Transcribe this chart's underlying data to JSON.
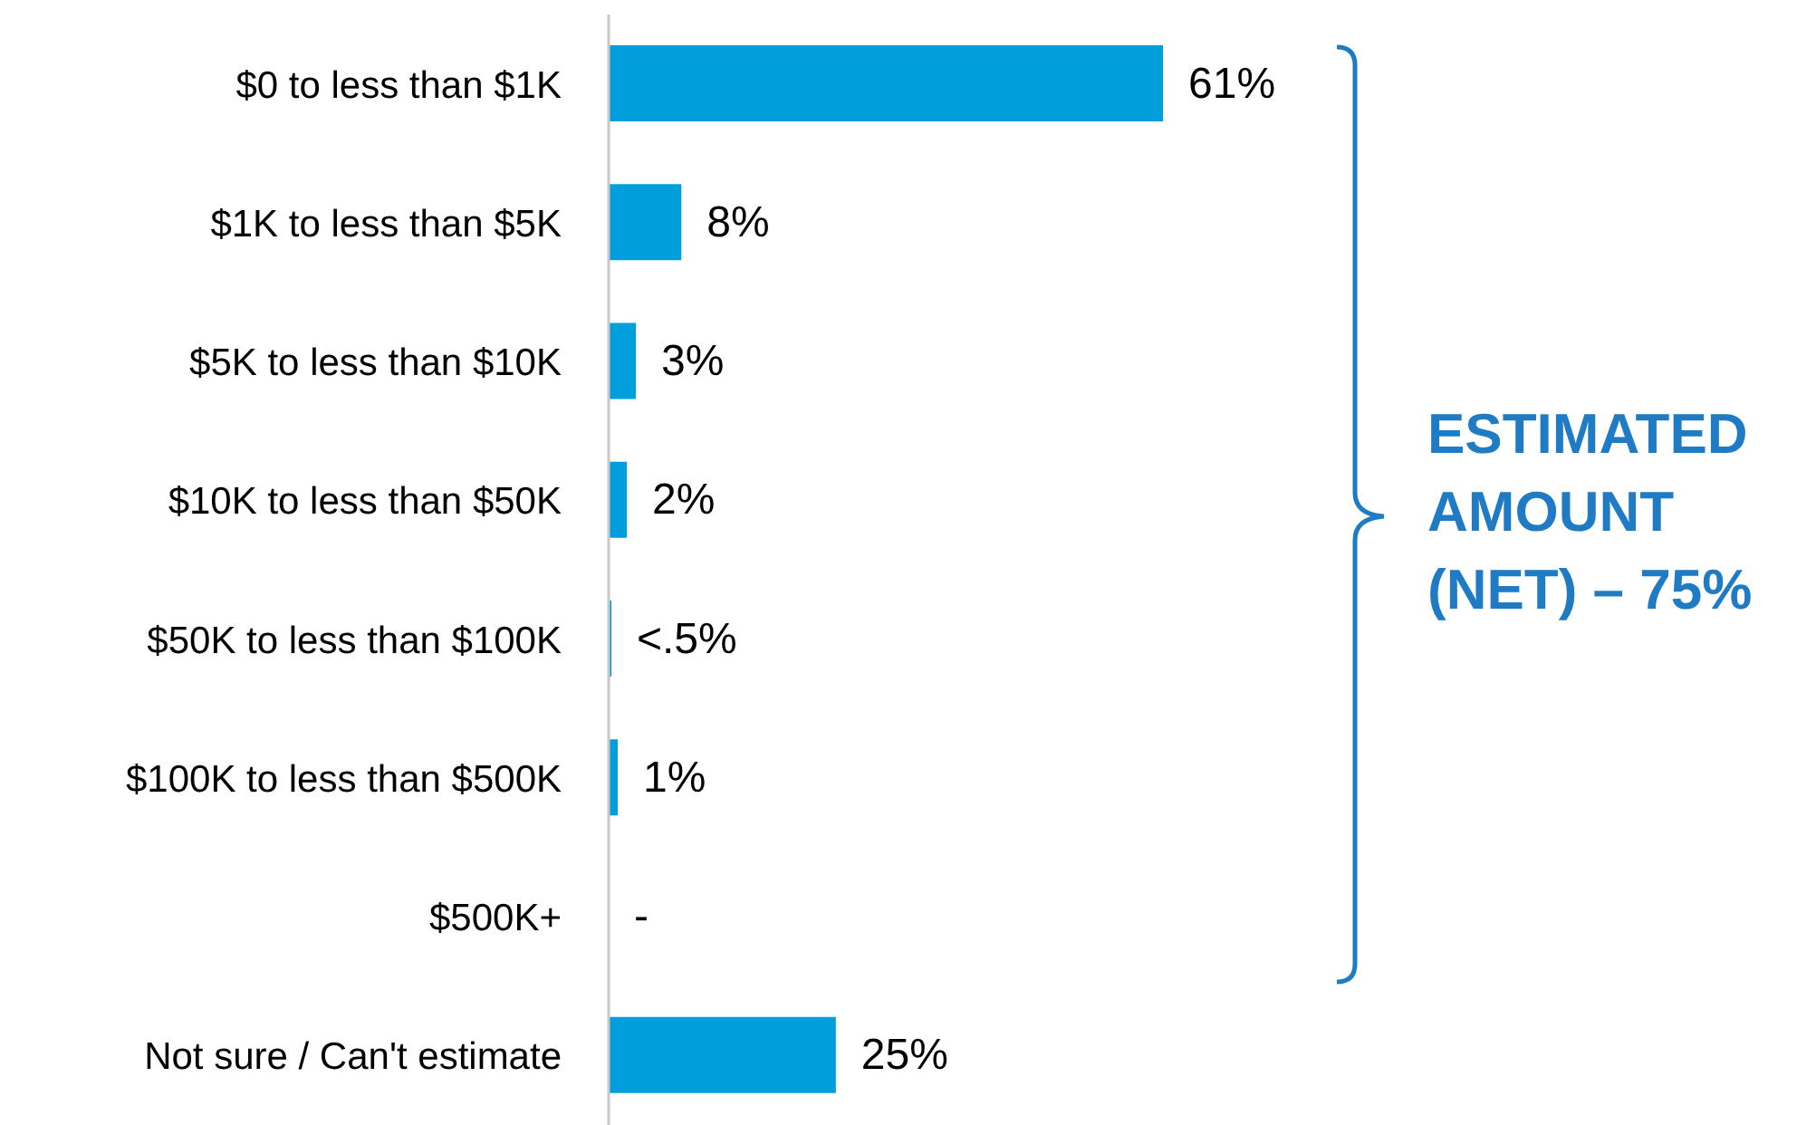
{
  "chart_data": {
    "type": "bar",
    "orientation": "horizontal",
    "categories": [
      "$0 to less than $1K",
      "$1K to less than $5K",
      "$5K to less than $10K",
      "$10K to less than $50K",
      "$50K to less than $100K",
      "$100K to less than $500K",
      "$500K+",
      "Not sure / Can't estimate"
    ],
    "values": [
      61,
      8,
      3,
      2,
      0.3,
      1,
      0,
      25
    ],
    "value_labels": [
      "61%",
      "8%",
      "3%",
      "2%",
      "<.5%",
      "1%",
      "-",
      "25%"
    ],
    "color": "#009fdb",
    "annotations": [
      "ESTIMATED AMOUNT (NET) – 75%"
    ]
  }
}
